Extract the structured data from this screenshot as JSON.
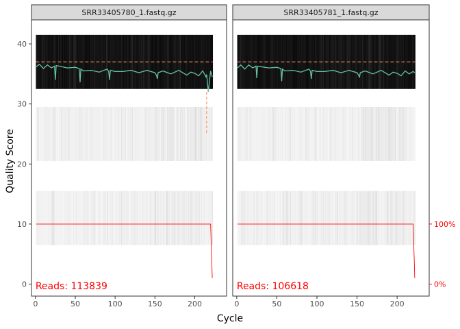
{
  "chart_data": {
    "type": "line",
    "xlabel": "Cycle",
    "ylabel": "Quality Score",
    "xlim": [
      -5,
      240
    ],
    "ylim": [
      -2,
      44
    ],
    "x_ticks": [
      0,
      50,
      100,
      150,
      200
    ],
    "y_ticks": [
      0,
      10,
      20,
      30,
      40
    ],
    "right_axis": {
      "labels": [
        "0%",
        "100%"
      ],
      "values": [
        0,
        10
      ],
      "color": "#ff0000"
    },
    "colors": {
      "mean_line": "#66c2a5",
      "quantile_line": "#fc8d62",
      "reference_line": "#fc8d62",
      "cumulative_line": "#ff0000",
      "reads_text": "#ff0000"
    },
    "panels": [
      {
        "title": "SRR33405780_1.fastq.gz",
        "reads_label": "Reads:  113839",
        "max_cycle": 222,
        "reference_y": 37,
        "mean_quality": {
          "x": [
            1,
            5,
            10,
            15,
            20,
            24,
            25,
            26,
            30,
            40,
            50,
            55,
            56,
            57,
            60,
            70,
            80,
            90,
            92,
            93,
            94,
            100,
            110,
            120,
            130,
            140,
            150,
            152,
            153,
            154,
            160,
            170,
            180,
            190,
            195,
            200,
            205,
            210,
            213,
            214,
            215,
            216,
            217,
            220,
            222
          ],
          "y": [
            36.2,
            36.6,
            35.9,
            36.5,
            36.0,
            36.3,
            34.0,
            36.4,
            36.3,
            36.0,
            36.1,
            35.9,
            33.6,
            35.8,
            35.5,
            35.6,
            35.3,
            35.8,
            35.4,
            34.0,
            35.6,
            35.4,
            35.4,
            35.6,
            35.2,
            35.6,
            35.2,
            34.8,
            34.2,
            35.2,
            35.5,
            35.0,
            35.6,
            34.8,
            35.3,
            35.1,
            34.7,
            35.5,
            34.8,
            34.5,
            34.9,
            33.5,
            32.0,
            35.5,
            34.5
          ]
        },
        "quantile_line": {
          "x": [
            215,
            215,
            215
          ],
          "y": [
            32,
            29,
            25
          ]
        },
        "cumulative_reads_pct": {
          "x": [
            1,
            220,
            222
          ],
          "y": [
            100,
            100,
            10
          ]
        }
      },
      {
        "title": "SRR33405781_1.fastq.gz",
        "reads_label": "Reads:  106618",
        "max_cycle": 222,
        "reference_y": 37,
        "mean_quality": {
          "x": [
            1,
            5,
            10,
            15,
            20,
            24,
            25,
            26,
            30,
            40,
            50,
            55,
            56,
            57,
            60,
            70,
            80,
            90,
            92,
            93,
            94,
            100,
            110,
            120,
            130,
            140,
            150,
            152,
            153,
            154,
            160,
            170,
            180,
            190,
            195,
            200,
            205,
            210,
            215,
            220,
            222
          ],
          "y": [
            36.0,
            36.5,
            35.8,
            36.5,
            36.0,
            36.3,
            34.3,
            36.3,
            36.2,
            36.0,
            36.1,
            35.9,
            33.8,
            35.8,
            35.5,
            35.6,
            35.3,
            35.8,
            35.4,
            34.2,
            35.6,
            35.4,
            35.4,
            35.6,
            35.2,
            35.6,
            35.2,
            34.8,
            34.4,
            35.2,
            35.5,
            35.0,
            35.6,
            34.8,
            35.3,
            35.1,
            34.7,
            35.5,
            35.0,
            35.4,
            35.2
          ]
        },
        "cumulative_reads_pct": {
          "x": [
            1,
            220,
            222
          ],
          "y": [
            100,
            100,
            10
          ]
        }
      }
    ]
  }
}
